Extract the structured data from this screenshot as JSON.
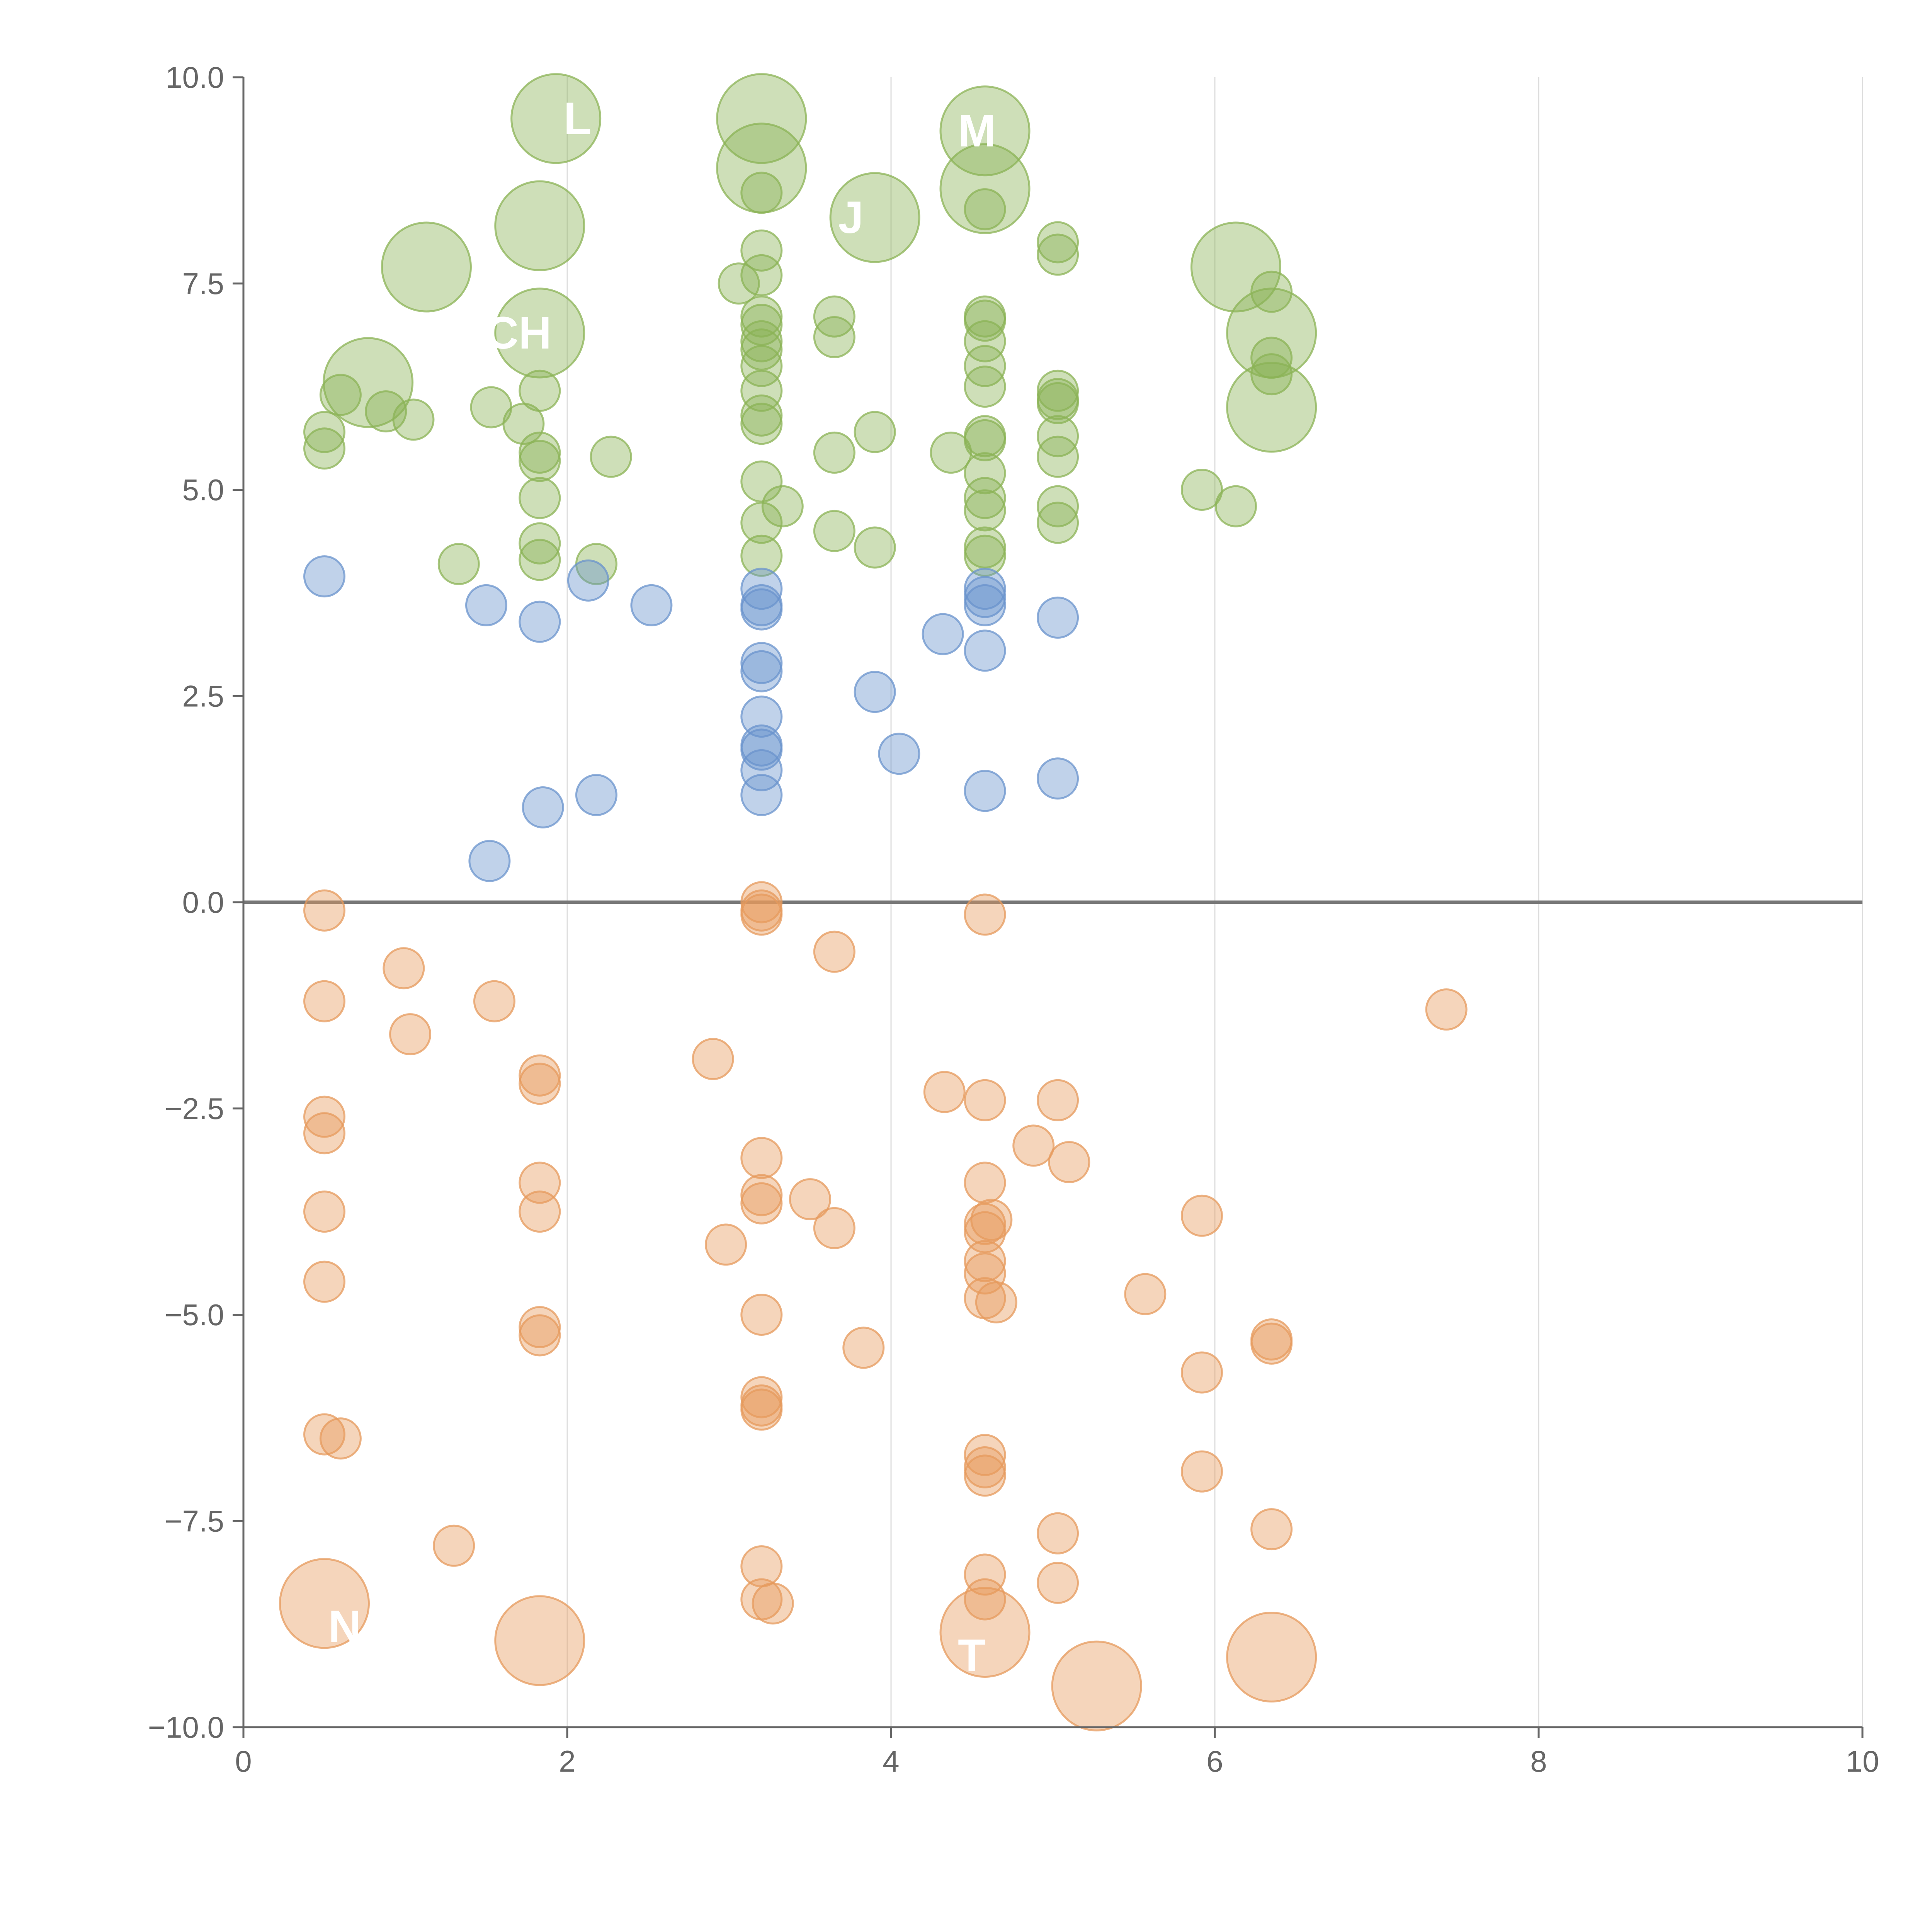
{
  "chart_data": {
    "type": "scatter",
    "title": "",
    "xlabel": "",
    "ylabel": "",
    "xlim": [
      0,
      10
    ],
    "ylim": [
      -10,
      10
    ],
    "x_ticks": [
      "0",
      "2",
      "4",
      "6",
      "8",
      "10"
    ],
    "y_ticks": [
      "10.0",
      "7.5",
      "5.0",
      "2.5",
      "0.0",
      "−2.5",
      "−5.0",
      "−7.5",
      "−10.0"
    ],
    "x_tick_values": [
      0,
      2,
      4,
      6,
      8,
      10
    ],
    "y_tick_values": [
      10,
      7.5,
      5,
      2.5,
      0,
      -2.5,
      -5,
      -7.5,
      -10
    ],
    "grid": "vertical lines at x ticks",
    "zero_line": true,
    "legend": "none",
    "colors": {
      "green": "#8bb356",
      "blue": "#6a93cc",
      "orange": "#e69a5c",
      "axis": "#666666",
      "grid": "#dddddd",
      "zero": "#777777"
    },
    "series": [
      {
        "color": "green",
        "points": [
          [
            1.93,
            9.5,
            2
          ],
          [
            3.2,
            9.5,
            2
          ],
          [
            3.2,
            8.9,
            2
          ],
          [
            4.58,
            9.35,
            2
          ],
          [
            4.58,
            8.65,
            2
          ],
          [
            3.9,
            8.3,
            2
          ],
          [
            1.83,
            8.2,
            2
          ],
          [
            1.13,
            7.7,
            2
          ],
          [
            6.13,
            7.7,
            2
          ],
          [
            1.83,
            6.9,
            2
          ],
          [
            0.77,
            6.3,
            2
          ],
          [
            6.35,
            6.9,
            2
          ],
          [
            6.35,
            6.0,
            2
          ],
          [
            3.2,
            8.6,
            1
          ],
          [
            3.2,
            7.9,
            1
          ],
          [
            3.2,
            7.6,
            1
          ],
          [
            3.2,
            7.1,
            1
          ],
          [
            3.2,
            7.0,
            1
          ],
          [
            3.2,
            6.8,
            1
          ],
          [
            3.2,
            6.7,
            1
          ],
          [
            3.2,
            6.5,
            1
          ],
          [
            3.2,
            6.2,
            1
          ],
          [
            3.2,
            5.9,
            1
          ],
          [
            3.2,
            5.8,
            1
          ],
          [
            3.2,
            5.1,
            1
          ],
          [
            3.2,
            4.6,
            1
          ],
          [
            3.2,
            4.2,
            1
          ],
          [
            3.33,
            4.8,
            1
          ],
          [
            3.06,
            7.5,
            1
          ],
          [
            4.58,
            8.4,
            1
          ],
          [
            4.58,
            7.1,
            1
          ],
          [
            4.58,
            7.05,
            1
          ],
          [
            4.58,
            6.8,
            1
          ],
          [
            4.58,
            6.5,
            1
          ],
          [
            4.58,
            6.25,
            1
          ],
          [
            4.58,
            5.65,
            1
          ],
          [
            4.58,
            5.6,
            1
          ],
          [
            4.58,
            5.2,
            1
          ],
          [
            4.58,
            4.9,
            1
          ],
          [
            4.58,
            4.75,
            1
          ],
          [
            4.58,
            4.3,
            1
          ],
          [
            4.58,
            4.2,
            1
          ],
          [
            5.03,
            8.0,
            1
          ],
          [
            5.03,
            7.85,
            1
          ],
          [
            5.03,
            6.2,
            1
          ],
          [
            5.03,
            6.1,
            1
          ],
          [
            5.03,
            6.05,
            1
          ],
          [
            5.03,
            5.65,
            1
          ],
          [
            5.03,
            5.4,
            1
          ],
          [
            5.03,
            4.8,
            1
          ],
          [
            5.03,
            4.6,
            1
          ],
          [
            3.65,
            7.1,
            1
          ],
          [
            3.65,
            6.85,
            1
          ],
          [
            3.65,
            5.45,
            1
          ],
          [
            3.65,
            4.5,
            1
          ],
          [
            3.9,
            5.7,
            1
          ],
          [
            3.9,
            4.3,
            1
          ],
          [
            4.37,
            5.45,
            1
          ],
          [
            1.83,
            6.2,
            1
          ],
          [
            1.83,
            5.45,
            1
          ],
          [
            1.83,
            5.35,
            1
          ],
          [
            1.83,
            4.9,
            1
          ],
          [
            1.83,
            4.35,
            1
          ],
          [
            1.83,
            4.15,
            1
          ],
          [
            1.73,
            5.8,
            1
          ],
          [
            1.53,
            6.0,
            1
          ],
          [
            2.27,
            5.4,
            1
          ],
          [
            2.18,
            4.1,
            1
          ],
          [
            1.33,
            4.1,
            1
          ],
          [
            0.5,
            5.7,
            1
          ],
          [
            0.5,
            5.5,
            1
          ],
          [
            0.6,
            6.15,
            1
          ],
          [
            0.88,
            5.95,
            1
          ],
          [
            1.05,
            5.85,
            1
          ],
          [
            6.35,
            7.4,
            1
          ],
          [
            6.35,
            6.6,
            1
          ],
          [
            6.35,
            6.4,
            1
          ],
          [
            5.92,
            5.0,
            1
          ],
          [
            6.13,
            4.8,
            1
          ]
        ]
      },
      {
        "color": "blue",
        "points": [
          [
            0.5,
            3.95,
            1
          ],
          [
            1.5,
            3.6,
            1
          ],
          [
            1.83,
            3.4,
            1
          ],
          [
            2.13,
            3.9,
            1
          ],
          [
            2.52,
            3.6,
            1
          ],
          [
            3.2,
            3.8,
            1
          ],
          [
            3.2,
            3.6,
            1
          ],
          [
            3.2,
            3.55,
            1
          ],
          [
            3.2,
            2.9,
            1
          ],
          [
            3.2,
            2.8,
            1
          ],
          [
            3.2,
            2.25,
            1
          ],
          [
            3.2,
            1.9,
            1
          ],
          [
            3.2,
            1.85,
            1
          ],
          [
            3.2,
            1.6,
            1
          ],
          [
            3.2,
            1.3,
            1
          ],
          [
            3.9,
            2.55,
            1
          ],
          [
            4.05,
            1.8,
            1
          ],
          [
            4.32,
            3.25,
            1
          ],
          [
            4.58,
            3.8,
            1
          ],
          [
            4.58,
            3.7,
            1
          ],
          [
            4.58,
            3.6,
            1
          ],
          [
            4.58,
            3.05,
            1
          ],
          [
            4.58,
            1.35,
            1
          ],
          [
            5.03,
            3.45,
            1
          ],
          [
            5.03,
            1.5,
            1
          ],
          [
            1.85,
            1.15,
            1
          ],
          [
            2.18,
            1.3,
            1
          ],
          [
            1.52,
            0.5,
            1
          ]
        ]
      },
      {
        "color": "orange",
        "points": [
          [
            0.5,
            -8.5,
            2
          ],
          [
            1.83,
            -8.95,
            2
          ],
          [
            4.58,
            -8.85,
            2
          ],
          [
            5.27,
            -9.5,
            2
          ],
          [
            6.35,
            -9.15,
            2
          ],
          [
            0.5,
            -0.1,
            1
          ],
          [
            0.5,
            -1.2,
            1
          ],
          [
            0.5,
            -2.6,
            1
          ],
          [
            0.5,
            -2.8,
            1
          ],
          [
            0.5,
            -3.75,
            1
          ],
          [
            0.5,
            -4.6,
            1
          ],
          [
            0.5,
            -6.45,
            1
          ],
          [
            0.6,
            -6.5,
            1
          ],
          [
            0.99,
            -0.8,
            1
          ],
          [
            1.03,
            -1.6,
            1
          ],
          [
            1.55,
            -1.2,
            1
          ],
          [
            1.3,
            -7.8,
            1
          ],
          [
            1.83,
            -2.1,
            1
          ],
          [
            1.83,
            -2.2,
            1
          ],
          [
            1.83,
            -3.4,
            1
          ],
          [
            1.83,
            -3.75,
            1
          ],
          [
            1.83,
            -5.15,
            1
          ],
          [
            1.83,
            -5.25,
            1
          ],
          [
            3.2,
            0.0,
            1
          ],
          [
            3.2,
            -0.1,
            1
          ],
          [
            3.2,
            -0.15,
            1
          ],
          [
            3.2,
            -3.1,
            1
          ],
          [
            3.2,
            -3.55,
            1
          ],
          [
            3.2,
            -3.65,
            1
          ],
          [
            3.2,
            -5.0,
            1
          ],
          [
            3.2,
            -6.0,
            1
          ],
          [
            3.2,
            -6.1,
            1
          ],
          [
            3.2,
            -6.15,
            1
          ],
          [
            3.2,
            -8.05,
            1
          ],
          [
            3.2,
            -8.45,
            1
          ],
          [
            3.27,
            -8.5,
            1
          ],
          [
            2.9,
            -1.9,
            1
          ],
          [
            2.98,
            -4.15,
            1
          ],
          [
            3.5,
            -3.6,
            1
          ],
          [
            3.65,
            -0.6,
            1
          ],
          [
            3.65,
            -3.95,
            1
          ],
          [
            3.83,
            -5.4,
            1
          ],
          [
            4.33,
            -2.3,
            1
          ],
          [
            4.58,
            -0.15,
            1
          ],
          [
            4.58,
            -2.4,
            1
          ],
          [
            4.58,
            -3.4,
            1
          ],
          [
            4.58,
            -3.9,
            1
          ],
          [
            4.58,
            -4.0,
            1
          ],
          [
            4.62,
            -3.85,
            1
          ],
          [
            4.58,
            -4.35,
            1
          ],
          [
            4.58,
            -4.5,
            1
          ],
          [
            4.58,
            -4.8,
            1
          ],
          [
            4.65,
            -4.85,
            1
          ],
          [
            4.58,
            -6.7,
            1
          ],
          [
            4.58,
            -6.85,
            1
          ],
          [
            4.58,
            -6.95,
            1
          ],
          [
            4.58,
            -8.15,
            1
          ],
          [
            4.58,
            -8.45,
            1
          ],
          [
            4.88,
            -2.95,
            1
          ],
          [
            5.03,
            -2.4,
            1
          ],
          [
            5.1,
            -3.15,
            1
          ],
          [
            5.03,
            -7.65,
            1
          ],
          [
            5.03,
            -8.25,
            1
          ],
          [
            5.57,
            -4.75,
            1
          ],
          [
            5.92,
            -3.8,
            1
          ],
          [
            5.92,
            -5.7,
            1
          ],
          [
            5.92,
            -6.9,
            1
          ],
          [
            6.35,
            -5.3,
            1
          ],
          [
            6.35,
            -5.35,
            1
          ],
          [
            6.35,
            -7.6,
            1
          ],
          [
            7.43,
            -1.3,
            1
          ]
        ]
      }
    ]
  }
}
